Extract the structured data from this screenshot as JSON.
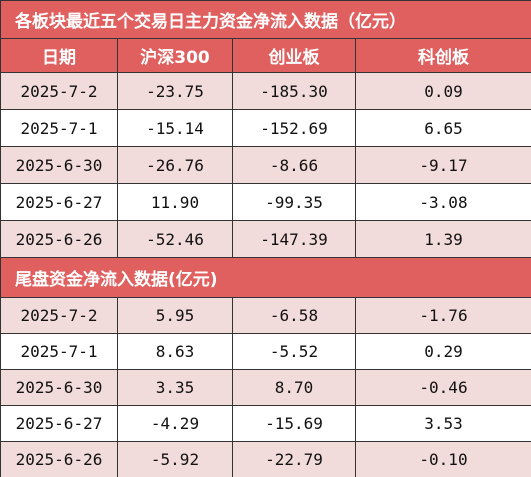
{
  "main": {
    "title": "各板块最近五个交易日主力资金净流入数据（亿元）",
    "header": [
      "日期",
      "沪深300",
      "创业板",
      "科创板"
    ],
    "rows": [
      [
        "2025-7-2",
        "-23.75",
        "-185.30",
        "0.09"
      ],
      [
        "2025-7-1",
        "-15.14",
        "-152.69",
        "6.65"
      ],
      [
        "2025-6-30",
        "-26.76",
        "-8.66",
        "-9.17"
      ],
      [
        "2025-6-27",
        "11.90",
        "-99.35",
        "-3.08"
      ],
      [
        "2025-6-26",
        "-52.46",
        "-147.39",
        "1.39"
      ]
    ]
  },
  "tail": {
    "title": "尾盘资金净流入数据(亿元)",
    "rows": [
      [
        "2025-7-2",
        "5.95",
        "-6.58",
        "-1.76"
      ],
      [
        "2025-7-1",
        "8.63",
        "-5.52",
        "0.29"
      ],
      [
        "2025-6-30",
        "3.35",
        "8.70",
        "-0.46"
      ],
      [
        "2025-6-27",
        "-4.29",
        "-15.69",
        "3.53"
      ],
      [
        "2025-6-26",
        "-5.92",
        "-22.79",
        "-0.10"
      ]
    ]
  }
}
